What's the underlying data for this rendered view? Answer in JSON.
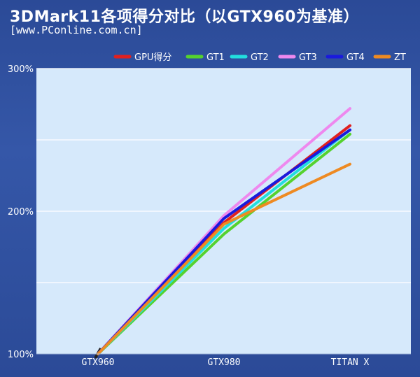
{
  "header": {
    "title": "3DMark11各项得分对比（以GTX960为基准）",
    "subtitle": "[www.PConline.com.cn]"
  },
  "colors": {
    "frame": "#2e4f9c",
    "plot_bg": "#d6e9fb",
    "grid": "#ffffff",
    "axis_text": "#ffffff"
  },
  "chart_data": {
    "type": "line",
    "title": "3DMark11各项得分对比（以GTX960为基准）",
    "categories": [
      "GTX960",
      "GTX980",
      "TITAN X"
    ],
    "y_ticks": [
      "100%",
      "200%",
      "300%"
    ],
    "ylim": [
      100,
      300
    ],
    "y_unit": "%",
    "grid": true,
    "legend_position": "top-right",
    "series": [
      {
        "name": "GPU得分",
        "color": "#e0201f",
        "values": [
          100,
          192,
          260
        ]
      },
      {
        "name": "GT1",
        "color": "#55d22e",
        "values": [
          100,
          184,
          254
        ]
      },
      {
        "name": "GT2",
        "color": "#22dede",
        "values": [
          100,
          188,
          257
        ]
      },
      {
        "name": "GT3",
        "color": "#ee88ee",
        "values": [
          100,
          197,
          272
        ]
      },
      {
        "name": "GT4",
        "color": "#1a1add",
        "values": [
          100,
          195,
          257
        ]
      },
      {
        "name": "ZT",
        "color": "#ee8a22",
        "values": [
          100,
          191,
          233
        ]
      }
    ]
  }
}
